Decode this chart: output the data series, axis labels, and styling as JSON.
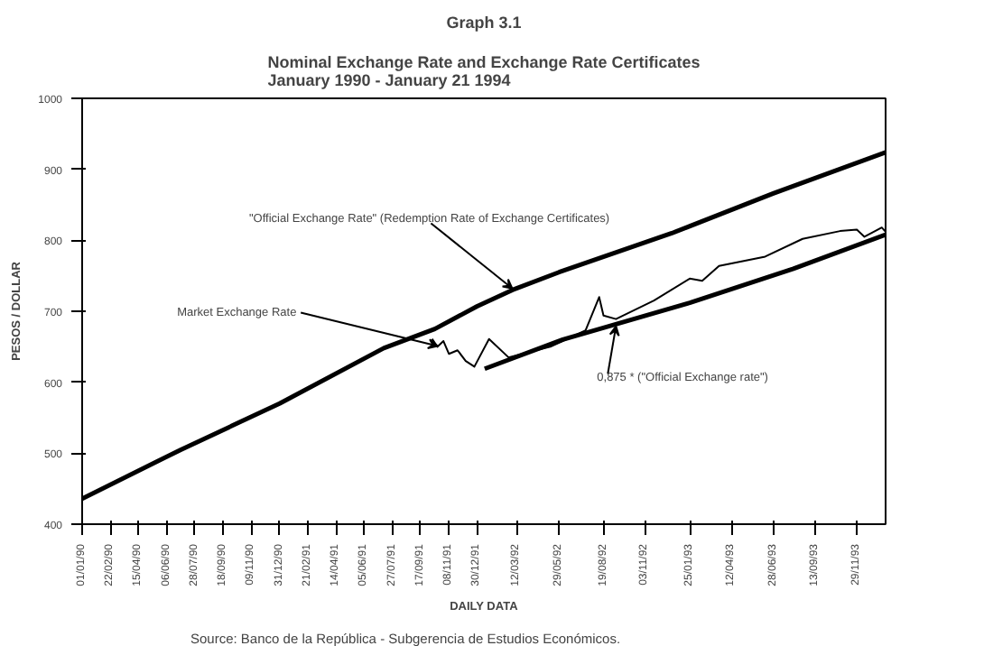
{
  "chart_data": {
    "type": "line",
    "title": "Graph 3.1",
    "subtitle": "Nominal Exchange Rate and Exchange Rate Certificates\nJanuary 1990 - January 21 1994",
    "xlabel": "DAILY DATA",
    "ylabel": "PESOS / DOLLAR",
    "xlim": [
      "1990-01-01",
      "1994-01-21"
    ],
    "ylim": [
      400,
      1000
    ],
    "yticks": [
      400,
      500,
      600,
      700,
      800,
      900,
      1000
    ],
    "xticks": [
      {
        "value": "1990-01-01",
        "label": "01/01/90"
      },
      {
        "value": "1990-02-22",
        "label": "22/02/90"
      },
      {
        "value": "1990-04-15",
        "label": "15/04/90"
      },
      {
        "value": "1990-06-06",
        "label": "06/06/90"
      },
      {
        "value": "1990-07-28",
        "label": "28/07/90"
      },
      {
        "value": "1990-09-18",
        "label": "18/09/90"
      },
      {
        "value": "1990-11-09",
        "label": "09/11/90"
      },
      {
        "value": "1990-12-31",
        "label": "31/12/90"
      },
      {
        "value": "1991-02-21",
        "label": "21/02/91"
      },
      {
        "value": "1991-04-14",
        "label": "14/04/91"
      },
      {
        "value": "1991-06-05",
        "label": "05/06/91"
      },
      {
        "value": "1991-07-27",
        "label": "27/07/91"
      },
      {
        "value": "1991-09-17",
        "label": "17/09/91"
      },
      {
        "value": "1991-11-08",
        "label": "08/11/91"
      },
      {
        "value": "1991-12-30",
        "label": "30/12/91"
      },
      {
        "value": "1992-03-12",
        "label": "12/03/92"
      },
      {
        "value": "1992-05-29",
        "label": "29/05/92"
      },
      {
        "value": "1992-08-19",
        "label": "19/08/92"
      },
      {
        "value": "1992-11-03",
        "label": "03/11/92"
      },
      {
        "value": "1993-01-25",
        "label": "25/01/93"
      },
      {
        "value": "1993-04-12",
        "label": "12/04/93"
      },
      {
        "value": "1993-06-28",
        "label": "28/06/93"
      },
      {
        "value": "1993-09-13",
        "label": "13/09/93"
      },
      {
        "value": "1993-11-29",
        "label": "29/11/93"
      }
    ],
    "series": [
      {
        "color": "#000000",
        "x": [
          "1990-01-01",
          "1990-07-02",
          "1990-12-31",
          "1991-07-11",
          "1991-10-13",
          "1991-12-30",
          "1992-03-04",
          "1992-05-29",
          "1992-12-23",
          "1993-06-28",
          "1994-01-21"
        ],
        "values": [
          436,
          505,
          570,
          648,
          675,
          707,
          730,
          755,
          810,
          866,
          924
        ]
      },
      {
        "color": "#000000",
        "x": [
          "1991-10-08",
          "1991-10-18",
          "1991-10-29",
          "1991-11-08",
          "1991-11-24",
          "1991-12-09",
          "1991-12-25",
          "1992-01-21",
          "1992-02-26",
          "1992-05-13",
          "1992-07-17",
          "1992-08-11",
          "1992-08-19",
          "1992-09-11",
          "1992-11-20",
          "1993-01-25",
          "1993-02-17",
          "1993-03-20",
          "1993-06-13",
          "1993-08-21",
          "1993-10-29",
          "1993-11-29",
          "1993-12-13",
          "1994-01-14",
          "1994-01-21"
        ],
        "values": [
          661,
          650,
          658,
          640,
          645,
          630,
          622,
          661,
          635,
          650,
          673,
          720,
          694,
          689,
          715,
          746,
          743,
          764,
          777,
          802,
          813,
          815,
          805,
          818,
          812
        ]
      },
      {
        "color": "#000000",
        "x": [
          "1992-01-13",
          "1992-06-05",
          "1993-01-25",
          "1993-08-04",
          "1994-01-21"
        ],
        "values": [
          619,
          660,
          712,
          760,
          808
        ]
      }
    ],
    "annotations": [
      {
        "text": "\"Official Exchange Rate\"  (Redemption Rate of Exchange Certificates)",
        "x": "1992-03-04",
        "y": 730
      },
      {
        "text": "Market Exchange Rate",
        "x": "1991-10-18",
        "y": 650
      },
      {
        "text": "0,875 * (\"Official Exchange rate\")",
        "x": "1992-09-11",
        "y": 681
      },
      "Source: Banco de la República - Subgerencia de Estudios Económicos."
    ],
    "grid": false
  }
}
